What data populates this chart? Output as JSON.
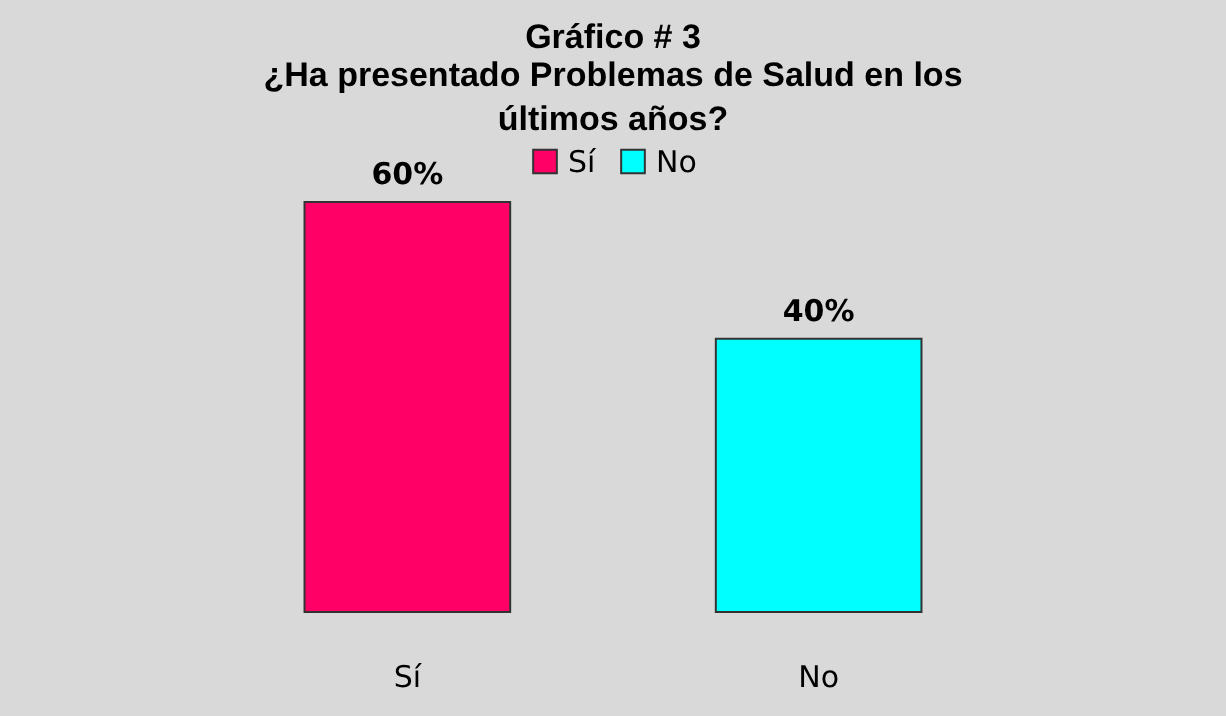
{
  "chart_data": {
    "type": "bar",
    "title": "Gráfico # 3",
    "subtitle": "¿Ha presentado Problemas de Salud en los últimos años?",
    "categories": [
      "Sí",
      "No"
    ],
    "series": [
      {
        "name": "Sí",
        "color": "#ff0066",
        "values": [
          60,
          null
        ],
        "value_labels": [
          "60%",
          null
        ]
      },
      {
        "name": "No",
        "color": "#00ffff",
        "values": [
          null,
          40
        ],
        "value_labels": [
          null,
          "40%"
        ]
      }
    ],
    "legend": "top"
  }
}
